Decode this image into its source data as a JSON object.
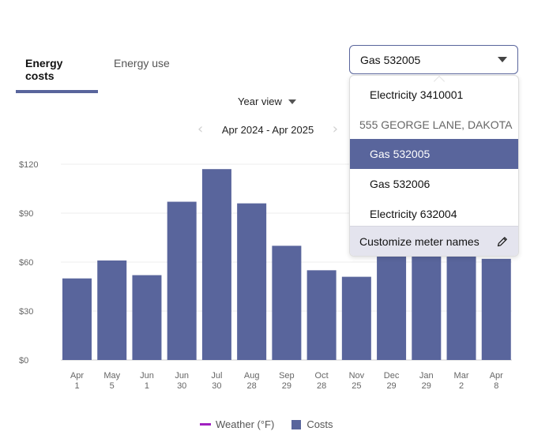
{
  "tabs": [
    {
      "label": "Energy costs",
      "active": true
    },
    {
      "label": "Energy use",
      "active": false
    }
  ],
  "view": {
    "label": "Year view"
  },
  "range": {
    "label": "Apr 2024 - Apr 2025"
  },
  "meter_select": {
    "selected": "Gas 532005"
  },
  "menu": {
    "items": [
      {
        "label": "Electricity 3410001",
        "kind": "item"
      },
      {
        "label": "555 GEORGE LANE, DAKOTA",
        "kind": "group"
      },
      {
        "label": "Gas 532005",
        "kind": "item",
        "selected": true
      },
      {
        "label": "Gas 532006",
        "kind": "item"
      },
      {
        "label": "Electricity 632004",
        "kind": "item"
      }
    ],
    "footer_label": "Customize meter names"
  },
  "legend": {
    "weather": "Weather (°F)",
    "costs": "Costs"
  },
  "colors": {
    "accent": "#59659c",
    "weather": "#a020c0"
  },
  "chart_data": {
    "type": "bar",
    "categories": [
      "Apr 1",
      "May 5",
      "Jun 1",
      "Jun 30",
      "Jul 30",
      "Aug 28",
      "Sep 29",
      "Oct 28",
      "Nov 25",
      "Dec 29",
      "Jan 29",
      "Mar 2",
      "Apr 8"
    ],
    "categories_lines": [
      [
        "Apr",
        "1"
      ],
      [
        "May",
        "5"
      ],
      [
        "Jun",
        "1"
      ],
      [
        "Jun",
        "30"
      ],
      [
        "Jul",
        "30"
      ],
      [
        "Aug",
        "28"
      ],
      [
        "Sep",
        "29"
      ],
      [
        "Oct",
        "28"
      ],
      [
        "Nov",
        "25"
      ],
      [
        "Dec",
        "29"
      ],
      [
        "Jan",
        "29"
      ],
      [
        "Mar",
        "2"
      ],
      [
        "Apr",
        "8"
      ]
    ],
    "series": [
      {
        "name": "Costs",
        "values": [
          50,
          61,
          52,
          97,
          117,
          96,
          70,
          55,
          51,
          64,
          64,
          64,
          62
        ]
      }
    ],
    "yticks": [
      "$0",
      "$30",
      "$60",
      "$90",
      "$120"
    ],
    "ytick_values": [
      0,
      30,
      60,
      90,
      120
    ],
    "ylim": [
      0,
      120
    ],
    "grid": true
  }
}
